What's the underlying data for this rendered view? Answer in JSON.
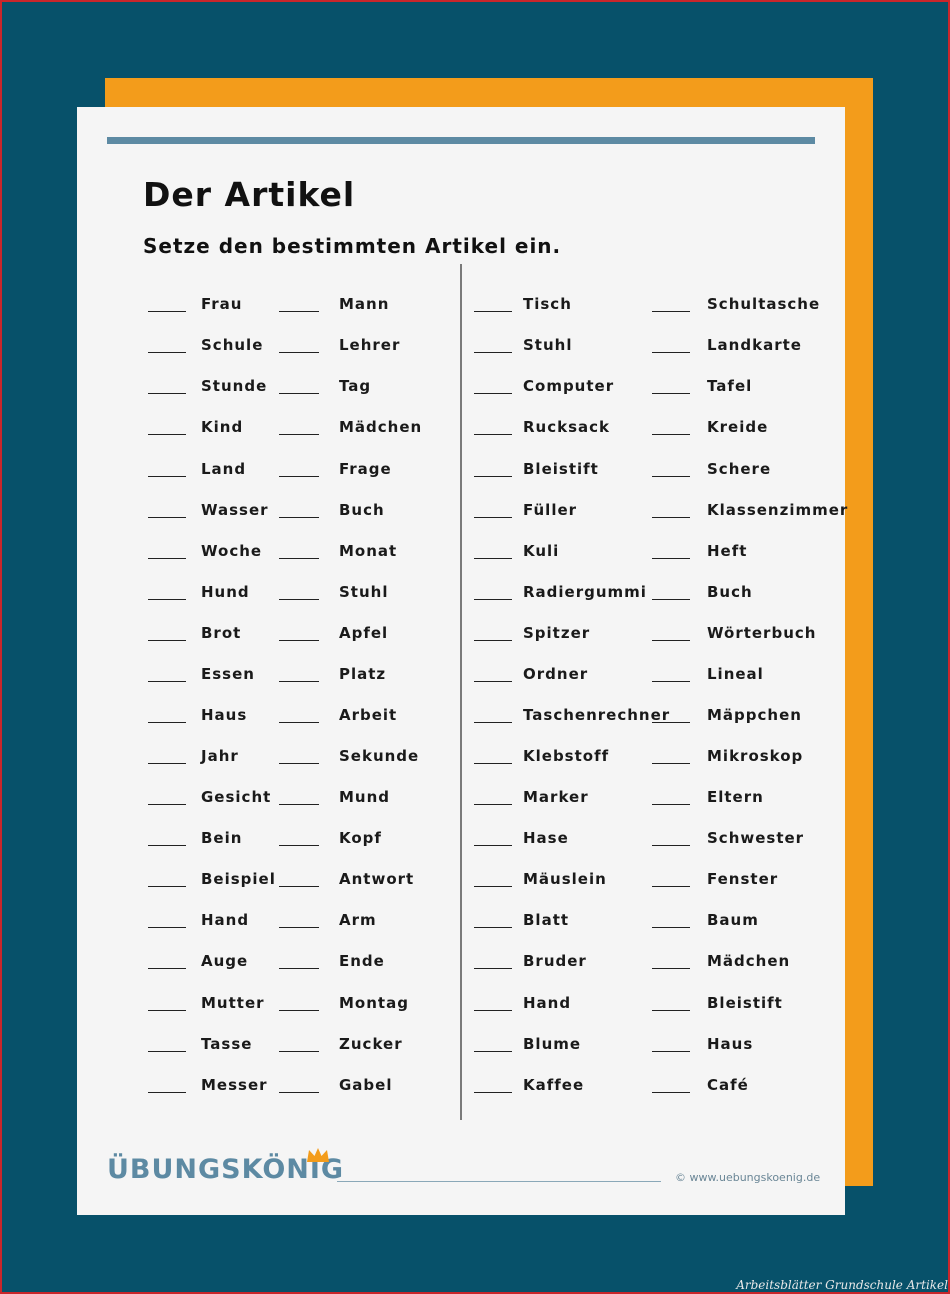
{
  "title": "Der Artikel",
  "instruction": "Setze den bestimmten Artikel ein.",
  "columns": [
    [
      "Frau",
      "Schule",
      "Stunde",
      "Kind",
      "Land",
      "Wasser",
      "Woche",
      "Hund",
      "Brot",
      "Essen",
      "Haus",
      "Jahr",
      "Gesicht",
      "Bein",
      "Beispiel",
      "Hand",
      "Auge",
      "Mutter",
      "Tasse",
      "Messer"
    ],
    [
      "Mann",
      "Lehrer",
      "Tag",
      "Mädchen",
      "Frage",
      "Buch",
      "Monat",
      "Stuhl",
      "Apfel",
      "Platz",
      "Arbeit",
      "Sekunde",
      "Mund",
      "Kopf",
      "Antwort",
      "Arm",
      "Ende",
      "Montag",
      "Zucker",
      "Gabel"
    ],
    [
      "Tisch",
      "Stuhl",
      "Computer",
      "Rucksack",
      "Bleistift",
      "Füller",
      "Kuli",
      "Radiergummi",
      "Spitzer",
      "Ordner",
      "Taschenrechner",
      "Klebstoff",
      "Marker",
      "Hase",
      "Mäuslein",
      "Blatt",
      "Bruder",
      "Hand",
      "Blume",
      "Kaffee"
    ],
    [
      "Schultasche",
      "Landkarte",
      "Tafel",
      "Kreide",
      "Schere",
      "Klassenzimmer",
      "Heft",
      "Buch",
      "Wörterbuch",
      "Lineal",
      "Mäppchen",
      "Mikroskop",
      "Eltern",
      "Schwester",
      "Fenster",
      "Baum",
      "Mädchen",
      "Bleistift",
      "Haus",
      "Café"
    ]
  ],
  "footer": {
    "logo": "ÜBUNGSKÖNIG",
    "website": "© www.uebungskoenig.de"
  },
  "caption": "Arbeitsblätter Grundschule Artikel",
  "colors": {
    "background": "#07516a",
    "accent_orange": "#f39c1b",
    "accent_blue": "#5d8aa3",
    "sheet": "#f5f5f5"
  }
}
